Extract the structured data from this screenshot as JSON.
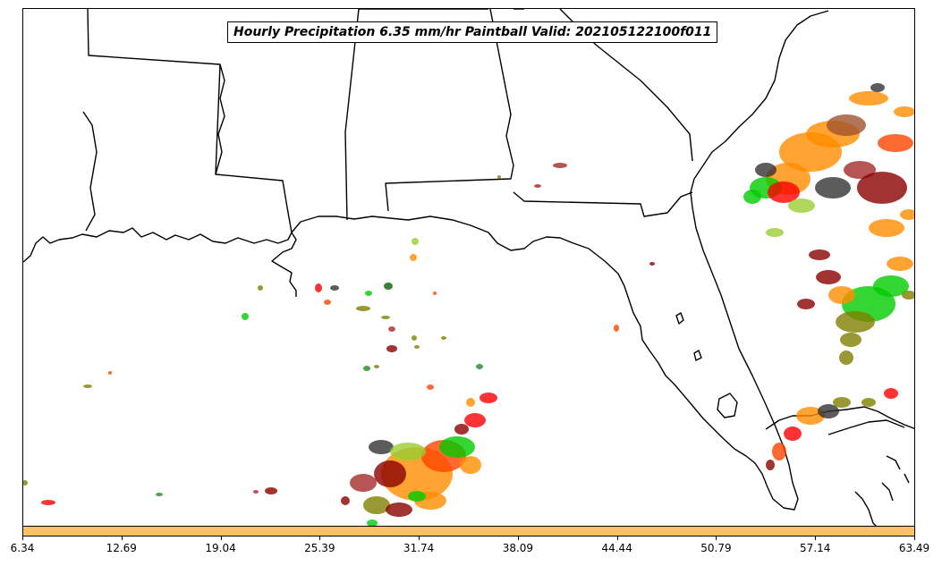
{
  "title": "Hourly Precipitation 6.35 mm/hr Paintball Valid: 202105122100f011",
  "colorbar": {
    "color": "#ffc266",
    "ticks": [
      "6.34",
      "12.69",
      "19.04",
      "25.39",
      "31.74",
      "38.09",
      "44.44",
      "50.79",
      "57.14",
      "63.49"
    ],
    "range": [
      6.34,
      63.49
    ]
  },
  "map": {
    "region": "Southeastern United States and Gulf of Mexico",
    "coastline_color": "#000000",
    "ensemble_member_colors": [
      "#ff0000",
      "#ff8c00",
      "#00cc00",
      "#8b0000",
      "#808000",
      "#333333",
      "#ffa500",
      "#9acd32",
      "#a52a2a",
      "#006400",
      "#ff4500",
      "#228b22"
    ]
  }
}
